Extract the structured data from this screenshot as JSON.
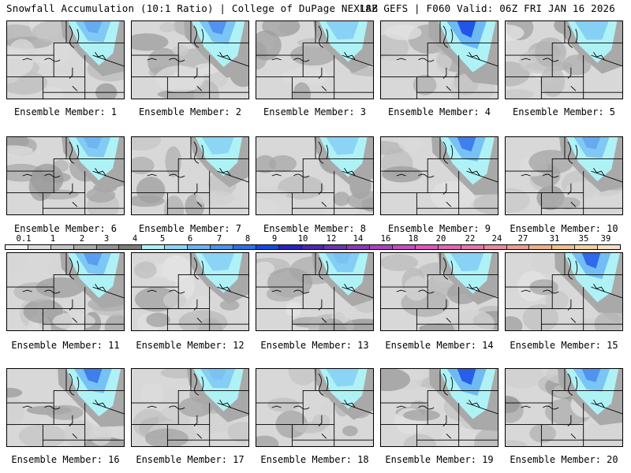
{
  "header": {
    "title": "Snowfall Accumulation (10:1 Ratio) | College of DuPage NEXLAB",
    "run_info": "18Z GEFS | F060 Valid: 06Z FRI JAN 16 2026"
  },
  "panels": [
    {
      "label": "Ensemble Member: 1",
      "intensity": 0.55
    },
    {
      "label": "Ensemble Member: 2",
      "intensity": 0.65
    },
    {
      "label": "Ensemble Member: 3",
      "intensity": 0.35
    },
    {
      "label": "Ensemble Member: 4",
      "intensity": 0.95
    },
    {
      "label": "Ensemble Member: 5",
      "intensity": 0.4
    },
    {
      "label": "Ensemble Member: 6",
      "intensity": 0.5
    },
    {
      "label": "Ensemble Member: 7",
      "intensity": 0.25
    },
    {
      "label": "Ensemble Member: 8",
      "intensity": 0.3
    },
    {
      "label": "Ensemble Member: 9",
      "intensity": 0.75
    },
    {
      "label": "Ensemble Member: 10",
      "intensity": 0.55
    },
    {
      "label": "Ensemble Member: 11",
      "intensity": 0.6
    },
    {
      "label": "Ensemble Member: 12",
      "intensity": 0.3
    },
    {
      "label": "Ensemble Member: 13",
      "intensity": 0.45
    },
    {
      "label": "Ensemble Member: 14",
      "intensity": 0.35
    },
    {
      "label": "Ensemble Member: 15",
      "intensity": 0.85
    },
    {
      "label": "Ensemble Member: 16",
      "intensity": 0.75
    },
    {
      "label": "Ensemble Member: 17",
      "intensity": 0.45
    },
    {
      "label": "Ensemble Member: 18",
      "intensity": 0.3
    },
    {
      "label": "Ensemble Member: 19",
      "intensity": 0.9
    },
    {
      "label": "Ensemble Member: 20",
      "intensity": 0.65
    }
  ],
  "legend": {
    "ticks": [
      "0.1",
      "1",
      "2",
      "3",
      "4",
      "5",
      "6",
      "7",
      "8",
      "9",
      "10",
      "12",
      "14",
      "16",
      "18",
      "20",
      "22",
      "24",
      "27",
      "31",
      "35",
      "39"
    ],
    "colors": [
      "#f4f4f4",
      "#dcdcdc",
      "#c4c4c4",
      "#acacac",
      "#949494",
      "#7c7c7c",
      "#aef2f6",
      "#8ed6f8",
      "#6ab6f4",
      "#4a96ee",
      "#2a72e8",
      "#1648e6",
      "#2a22c8",
      "#4a2aae",
      "#6a36b2",
      "#8a3cb8",
      "#aa44bc",
      "#c84cc2",
      "#dc58be",
      "#e466b4",
      "#ea76a8",
      "#ec8a9c",
      "#ee9e92",
      "#f0b08c",
      "#f2c08a",
      "#f4d0a4",
      "#f6e0c8"
    ]
  }
}
